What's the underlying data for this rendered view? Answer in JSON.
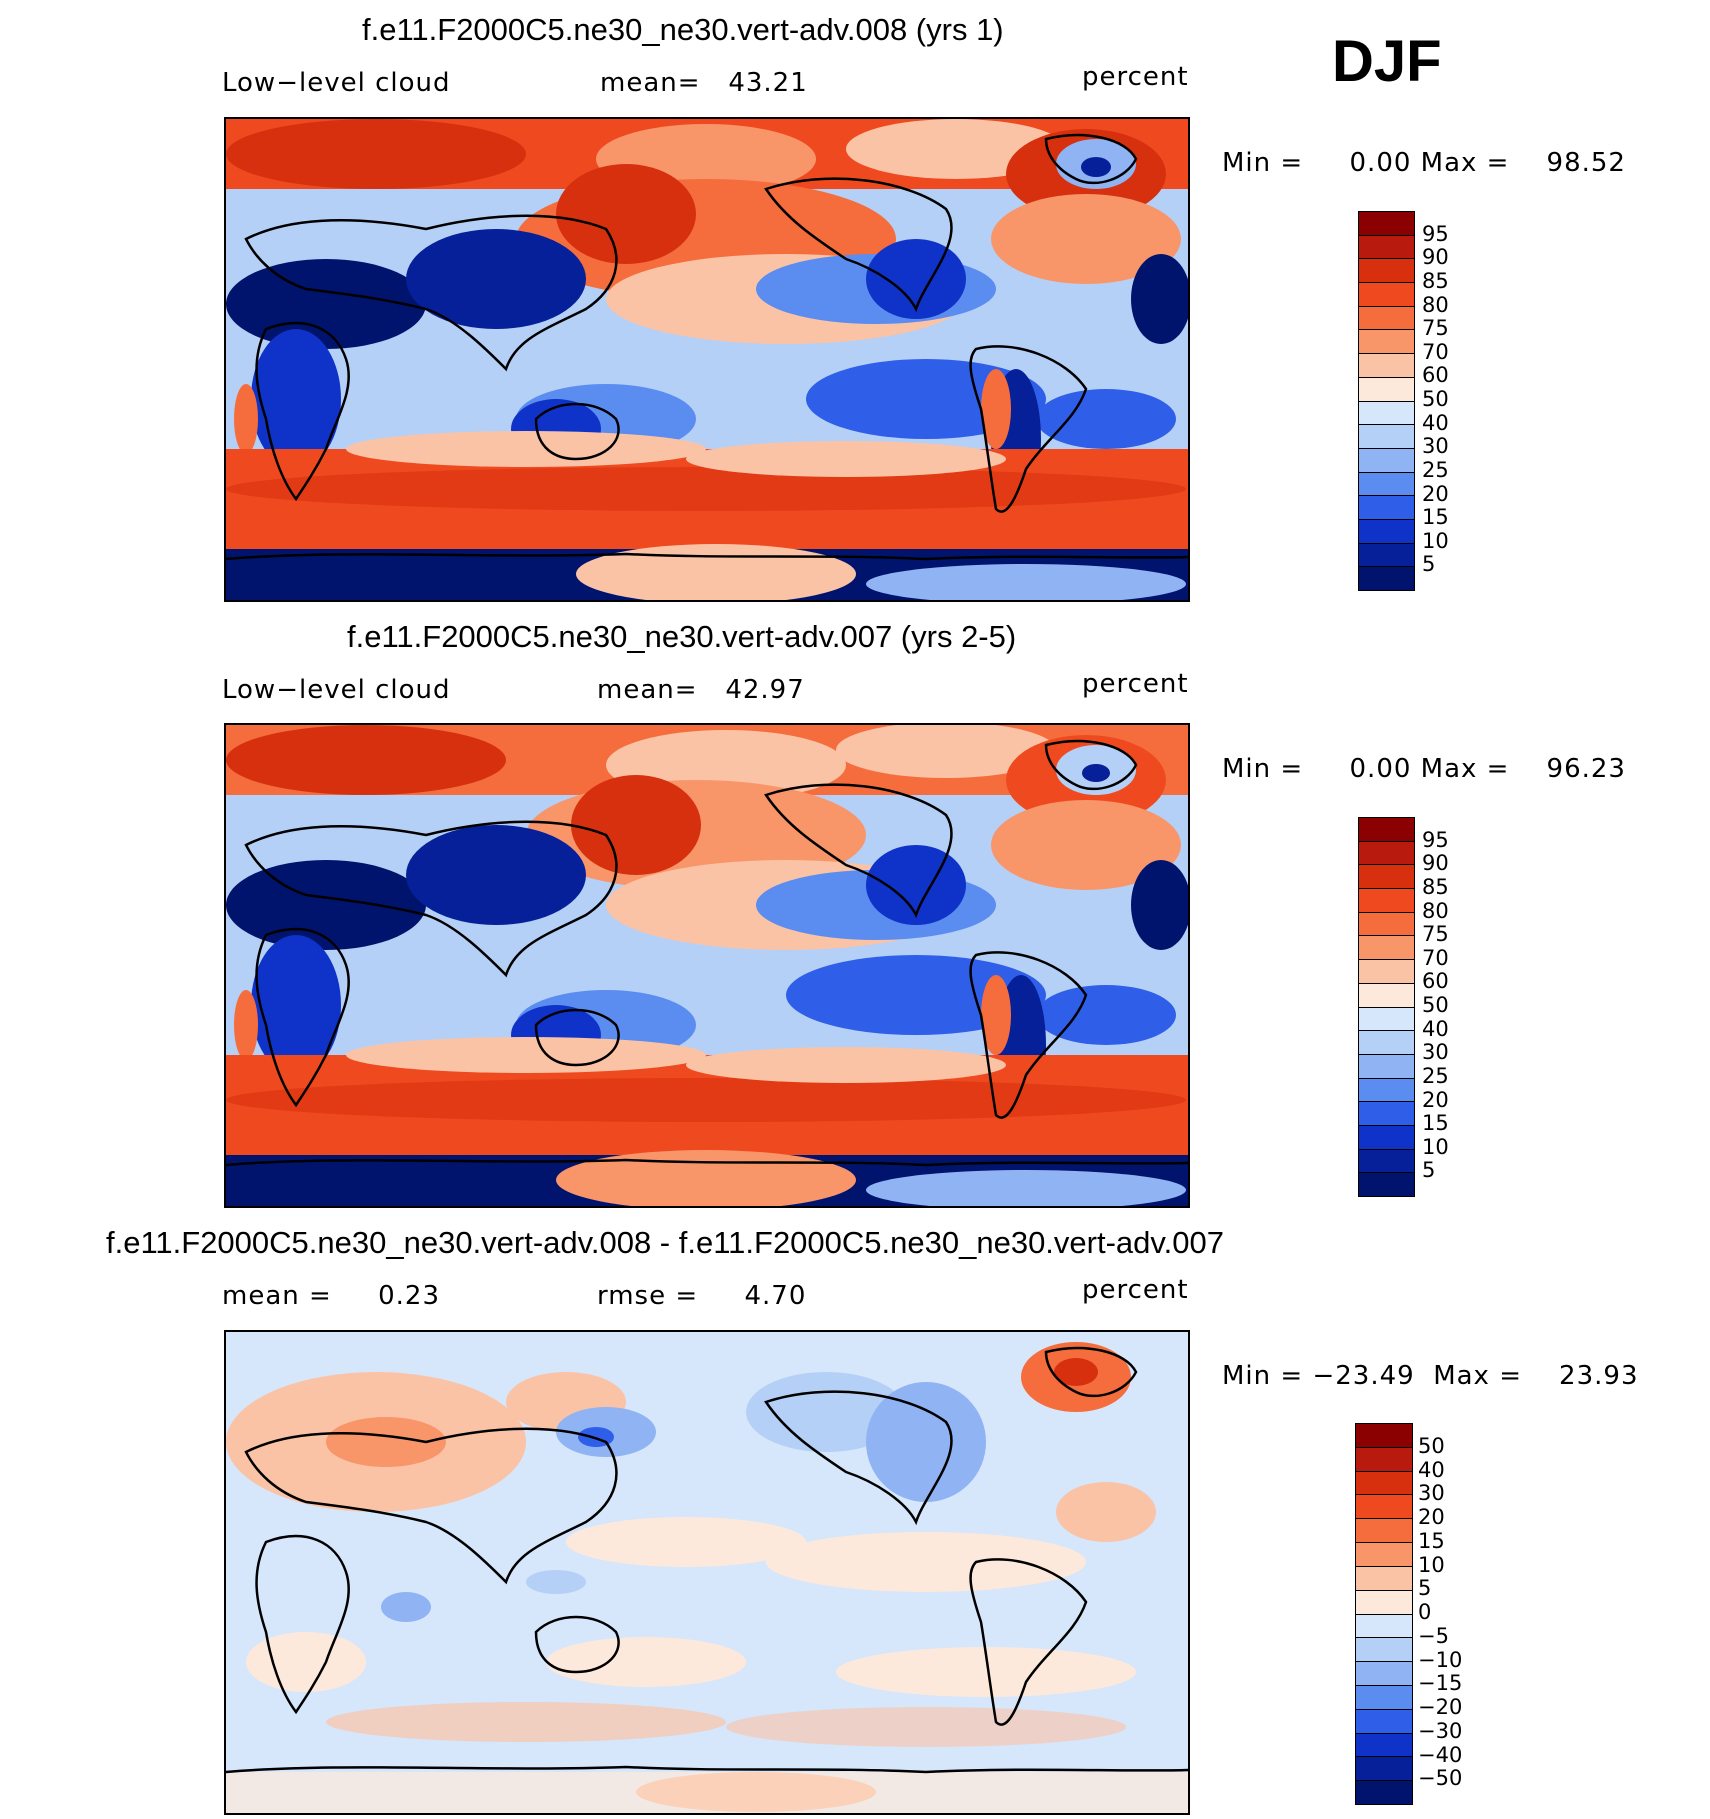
{
  "season": "DJF",
  "panels": [
    {
      "title": "f.e11.F2000C5.ne30_ne30.vert-adv.008 (yrs 1)",
      "left_label": "Low−level cloud",
      "center_label": "mean=   43.21",
      "units": "percent",
      "minmax": "Min =     0.00 Max =    98.52",
      "map_description": "Low-level cloud fraction"
    },
    {
      "title": "f.e11.F2000C5.ne30_ne30.vert-adv.007 (yrs 2-5)",
      "left_label": "Low−level cloud",
      "center_label": "mean=   42.97",
      "units": "percent",
      "minmax": "Min =     0.00 Max =    96.23",
      "map_description": "Low-level cloud fraction"
    },
    {
      "title": "f.e11.F2000C5.ne30_ne30.vert-adv.008 - f.e11.F2000C5.ne30_ne30.vert-adv.007",
      "left_label": "mean =     0.23",
      "center_label": "rmse =     4.70",
      "units": "percent",
      "minmax": "Min = −23.49  Max =    23.93",
      "map_description": "Difference"
    }
  ],
  "colorbars": {
    "abs": {
      "labels": [
        "95",
        "90",
        "85",
        "80",
        "75",
        "70",
        "60",
        "50",
        "40",
        "30",
        "25",
        "20",
        "15",
        "10",
        "5"
      ],
      "colors": [
        "#8b0000",
        "#b81a0e",
        "#d7300f",
        "#ef4a1f",
        "#f56d3d",
        "#f8966a",
        "#fbc3a6",
        "#fde9dc",
        "#d6e6fb",
        "#b5d0f6",
        "#8fb3f3",
        "#5b8cf0",
        "#2f5fe8",
        "#0f33c8",
        "#06209a",
        "#00146e"
      ]
    },
    "diff": {
      "labels": [
        "50",
        "40",
        "30",
        "20",
        "15",
        "10",
        "5",
        "0",
        "−5",
        "−10",
        "−15",
        "−20",
        "−30",
        "−40",
        "−50"
      ],
      "colors": [
        "#8b0000",
        "#b81a0e",
        "#d7300f",
        "#ef4a1f",
        "#f56d3d",
        "#f8966a",
        "#fbc3a6",
        "#fde9dc",
        "#d6e6fb",
        "#b5d0f6",
        "#8fb3f3",
        "#5b8cf0",
        "#2f5fe8",
        "#0f33c8",
        "#06209a",
        "#00146e"
      ]
    }
  },
  "chart_data": [
    {
      "type": "heatmap",
      "title": "f.e11.F2000C5.ne30_ne30.vert-adv.008 (yrs 1)",
      "variable": "Low-level cloud",
      "units": "percent",
      "mean": 43.21,
      "min": 0.0,
      "max": 98.52,
      "contour_levels": [
        5,
        10,
        15,
        20,
        25,
        30,
        40,
        50,
        60,
        70,
        75,
        80,
        85,
        90,
        95
      ]
    },
    {
      "type": "heatmap",
      "title": "f.e11.F2000C5.ne30_ne30.vert-adv.007 (yrs 2-5)",
      "variable": "Low-level cloud",
      "units": "percent",
      "mean": 42.97,
      "min": 0.0,
      "max": 96.23,
      "contour_levels": [
        5,
        10,
        15,
        20,
        25,
        30,
        40,
        50,
        60,
        70,
        75,
        80,
        85,
        90,
        95
      ]
    },
    {
      "type": "heatmap",
      "title": "f.e11.F2000C5.ne30_ne30.vert-adv.008 - f.e11.F2000C5.ne30_ne30.vert-adv.007",
      "units": "percent",
      "mean": 0.23,
      "rmse": 4.7,
      "min": -23.49,
      "max": 23.93,
      "contour_levels": [
        -50,
        -40,
        -30,
        -20,
        -15,
        -10,
        -5,
        0,
        5,
        10,
        15,
        20,
        30,
        40,
        50
      ]
    }
  ]
}
